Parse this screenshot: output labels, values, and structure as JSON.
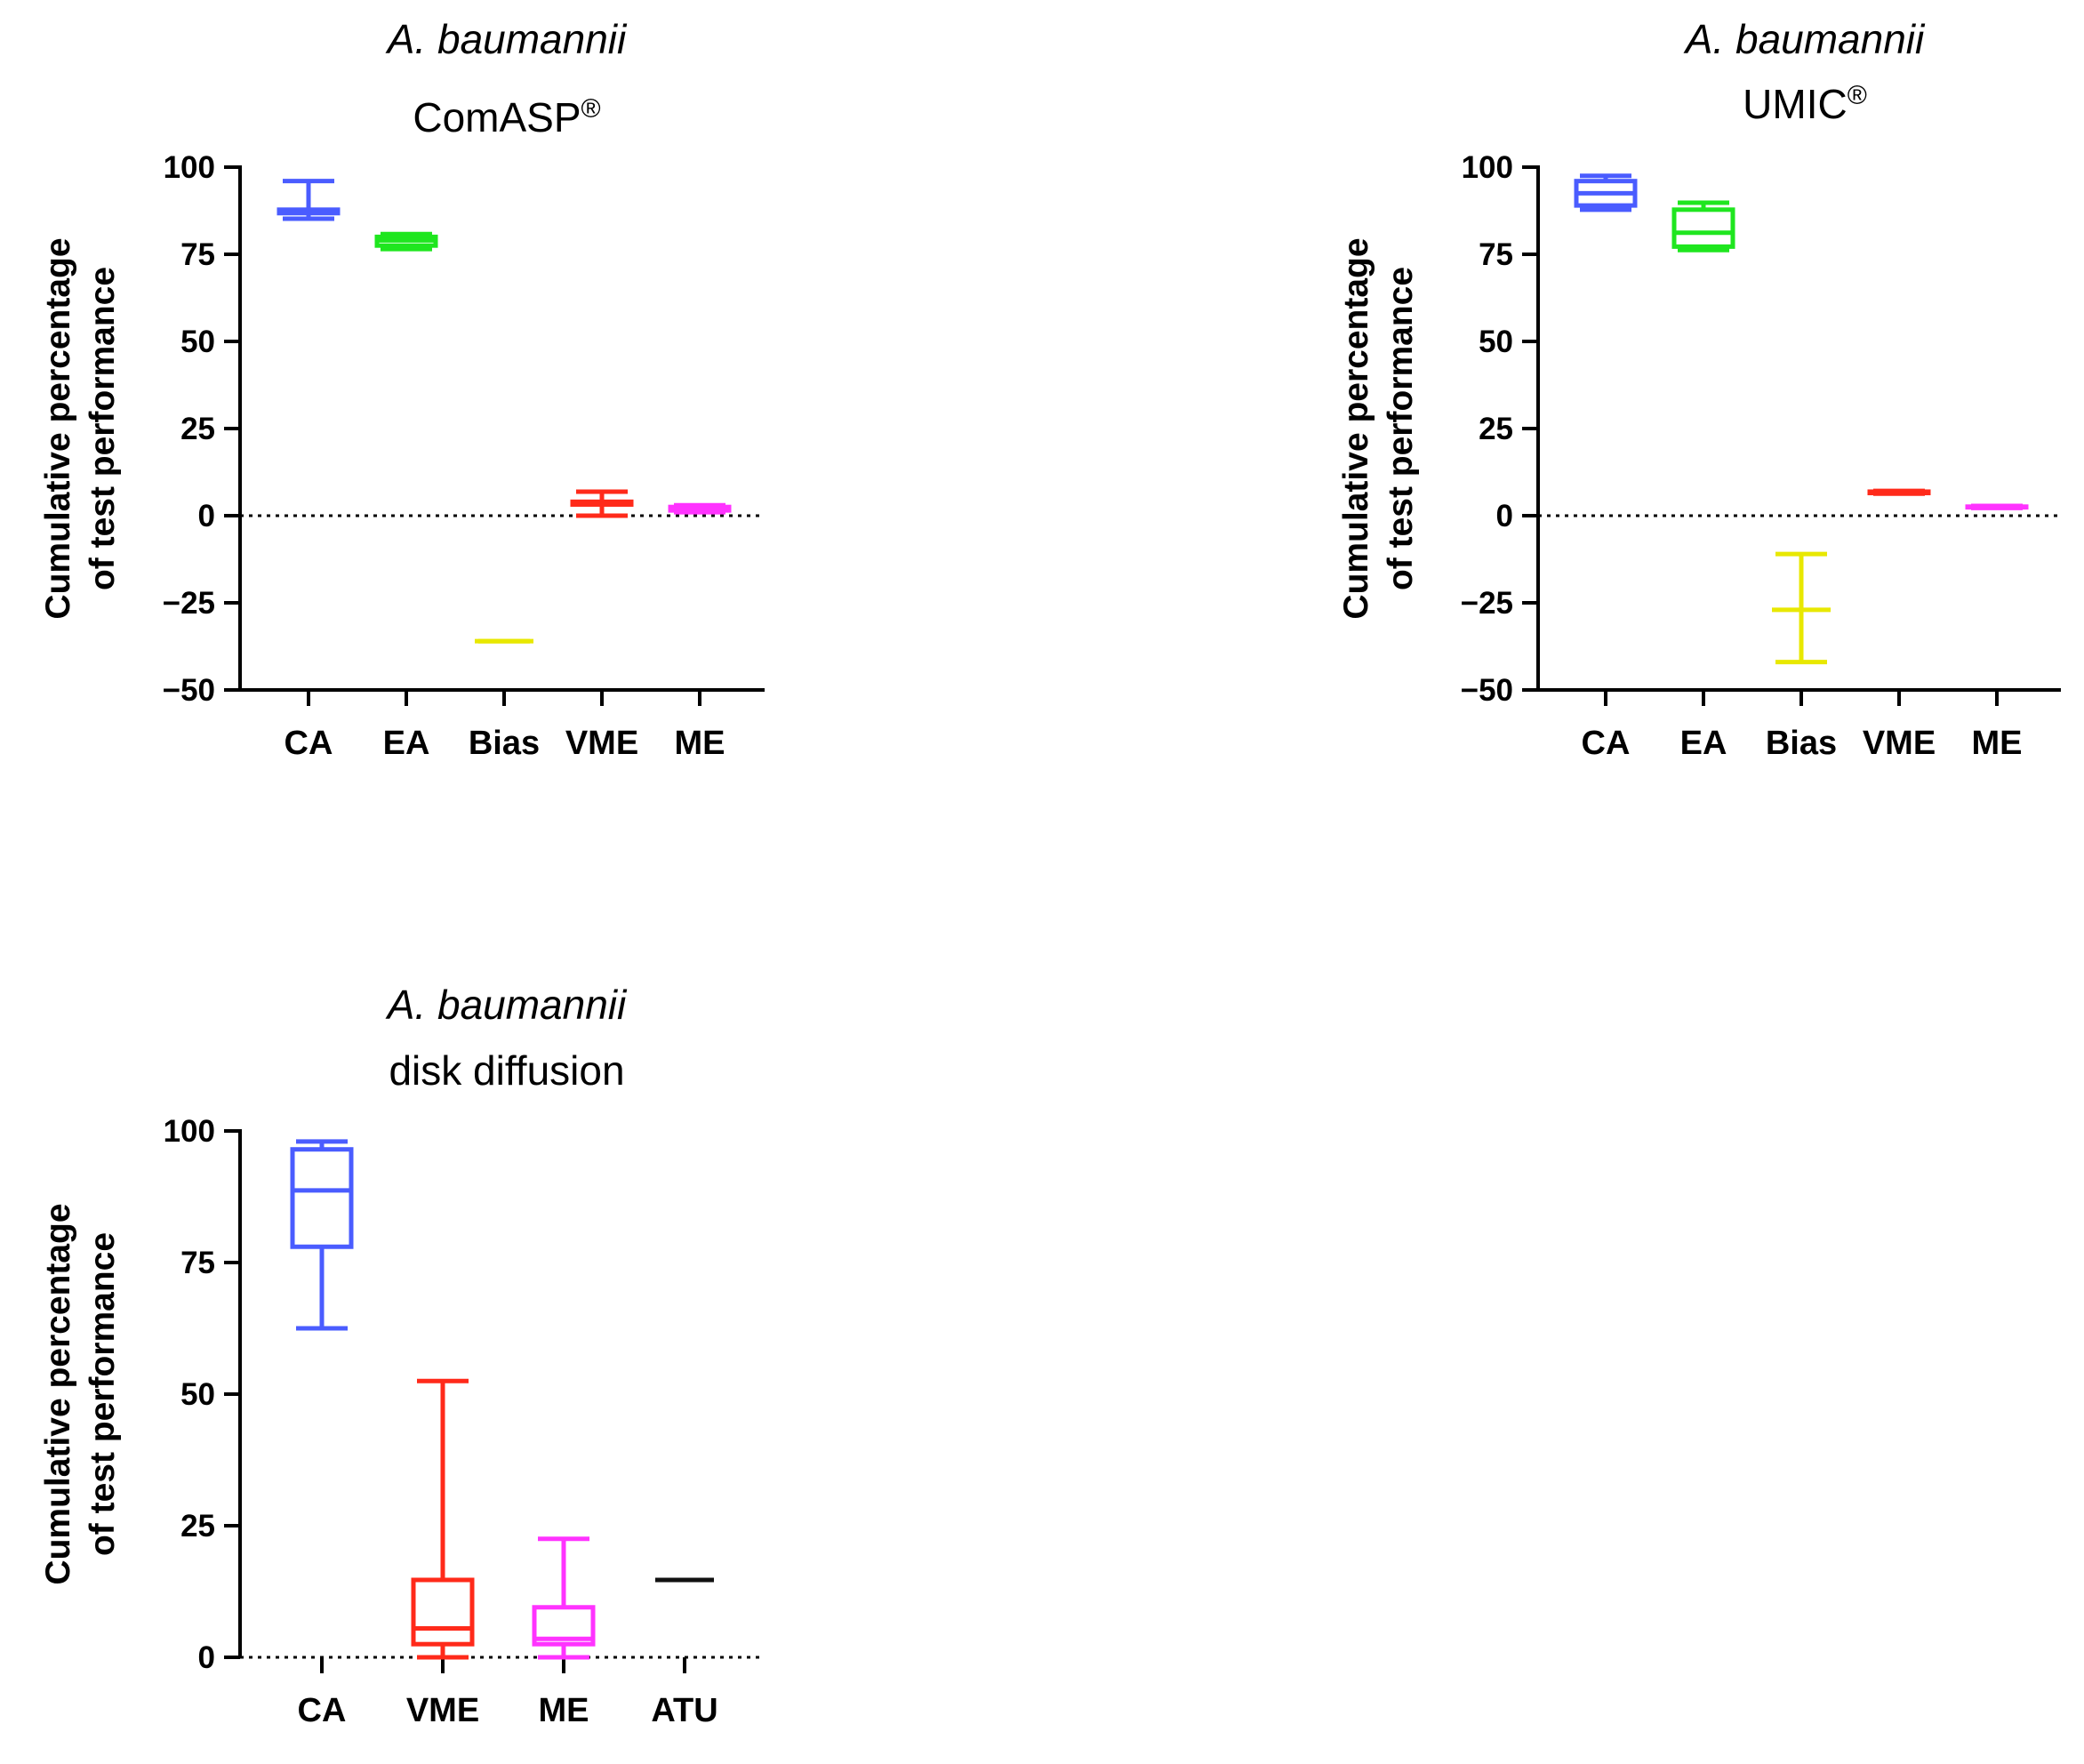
{
  "chart_data": [
    {
      "type": "box",
      "title": "A. baumannii",
      "subtitle": "ComASP",
      "subtitle_sup": "®",
      "ylabel": [
        "Cumulative percentage",
        "of test performance"
      ],
      "ylim": [
        -50,
        100
      ],
      "yticks": [
        100,
        75,
        50,
        25,
        0,
        -25,
        -50
      ],
      "ytick_labels": [
        "100",
        "75",
        "50",
        "25",
        "0",
        "−25",
        "−50"
      ],
      "reference_line": 0,
      "categories": [
        "CA",
        "EA",
        "Bias",
        "VME",
        "ME"
      ],
      "boxes": [
        {
          "name": "CA",
          "color": "#4a5cff",
          "min": 85.2,
          "q1": 86.8,
          "median": 87.3,
          "q3": 87.8,
          "max": 96.0
        },
        {
          "name": "EA",
          "color": "#1fe61f",
          "min": 76.5,
          "q1": 77.5,
          "median": 79.0,
          "q3": 80.0,
          "max": 80.8
        },
        {
          "name": "Bias",
          "color": "#e8e800",
          "min": -36.0,
          "q1": -36.0,
          "median": -36.0,
          "q3": -36.0,
          "max": -36.0
        },
        {
          "name": "VME",
          "color": "#ff2a1a",
          "min": 0.0,
          "q1": 3.2,
          "median": 3.6,
          "q3": 4.0,
          "max": 6.9
        },
        {
          "name": "ME",
          "color": "#ff33ff",
          "min": 1.0,
          "q1": 1.5,
          "median": 2.0,
          "q3": 2.5,
          "max": 3.0
        }
      ]
    },
    {
      "type": "box",
      "title": "A. baumannii",
      "subtitle": "UMIC",
      "subtitle_sup": "®",
      "ylabel": [
        "Cumulative percentage",
        "of test performance"
      ],
      "ylim": [
        -50,
        100
      ],
      "yticks": [
        100,
        75,
        50,
        25,
        0,
        -25,
        -50
      ],
      "ytick_labels": [
        "100",
        "75",
        "50",
        "25",
        "0",
        "−25",
        "−50"
      ],
      "reference_line": 0,
      "categories": [
        "CA",
        "EA",
        "Bias",
        "VME",
        "ME"
      ],
      "boxes": [
        {
          "name": "CA",
          "color": "#4a5cff",
          "min": 87.8,
          "q1": 89.0,
          "median": 92.5,
          "q3": 96.0,
          "max": 97.5
        },
        {
          "name": "EA",
          "color": "#1fe61f",
          "min": 76.2,
          "q1": 77.2,
          "median": 81.2,
          "q3": 87.8,
          "max": 89.8
        },
        {
          "name": "Bias",
          "color": "#e8e800",
          "min": -42.0,
          "q1": -27.0,
          "median": -27.0,
          "q3": -27.0,
          "max": -11.0
        },
        {
          "name": "VME",
          "color": "#ff2a1a",
          "min": 6.3,
          "q1": 6.5,
          "median": 6.7,
          "q3": 6.9,
          "max": 7.1
        },
        {
          "name": "ME",
          "color": "#ff33ff",
          "min": 2.2,
          "q1": 2.4,
          "median": 2.5,
          "q3": 2.6,
          "max": 2.8
        }
      ]
    },
    {
      "type": "box",
      "title": "A. baumannii",
      "subtitle": "disk diffusion",
      "subtitle_sup": "",
      "ylabel": [
        "Cumulative percentage",
        "of test performance"
      ],
      "ylim": [
        0,
        100
      ],
      "yticks": [
        100,
        75,
        50,
        25,
        0
      ],
      "ytick_labels": [
        "100",
        "75",
        "50",
        "25",
        "0"
      ],
      "reference_line": 0,
      "categories": [
        "CA",
        "VME",
        "ME",
        "ATU"
      ],
      "boxes": [
        {
          "name": "CA",
          "color": "#4a5cff",
          "min": 62.5,
          "q1": 78.0,
          "median": 88.7,
          "q3": 96.5,
          "max": 98.0
        },
        {
          "name": "VME",
          "color": "#ff2a1a",
          "min": 0.0,
          "q1": 2.5,
          "median": 5.5,
          "q3": 14.7,
          "max": 52.5
        },
        {
          "name": "ME",
          "color": "#ff33ff",
          "min": 0.0,
          "q1": 2.5,
          "median": 3.5,
          "q3": 9.5,
          "max": 22.5
        },
        {
          "name": "ATU",
          "color": "#111111",
          "min": 14.7,
          "q1": 14.7,
          "median": 14.7,
          "q3": 14.7,
          "max": 14.7
        }
      ]
    }
  ]
}
